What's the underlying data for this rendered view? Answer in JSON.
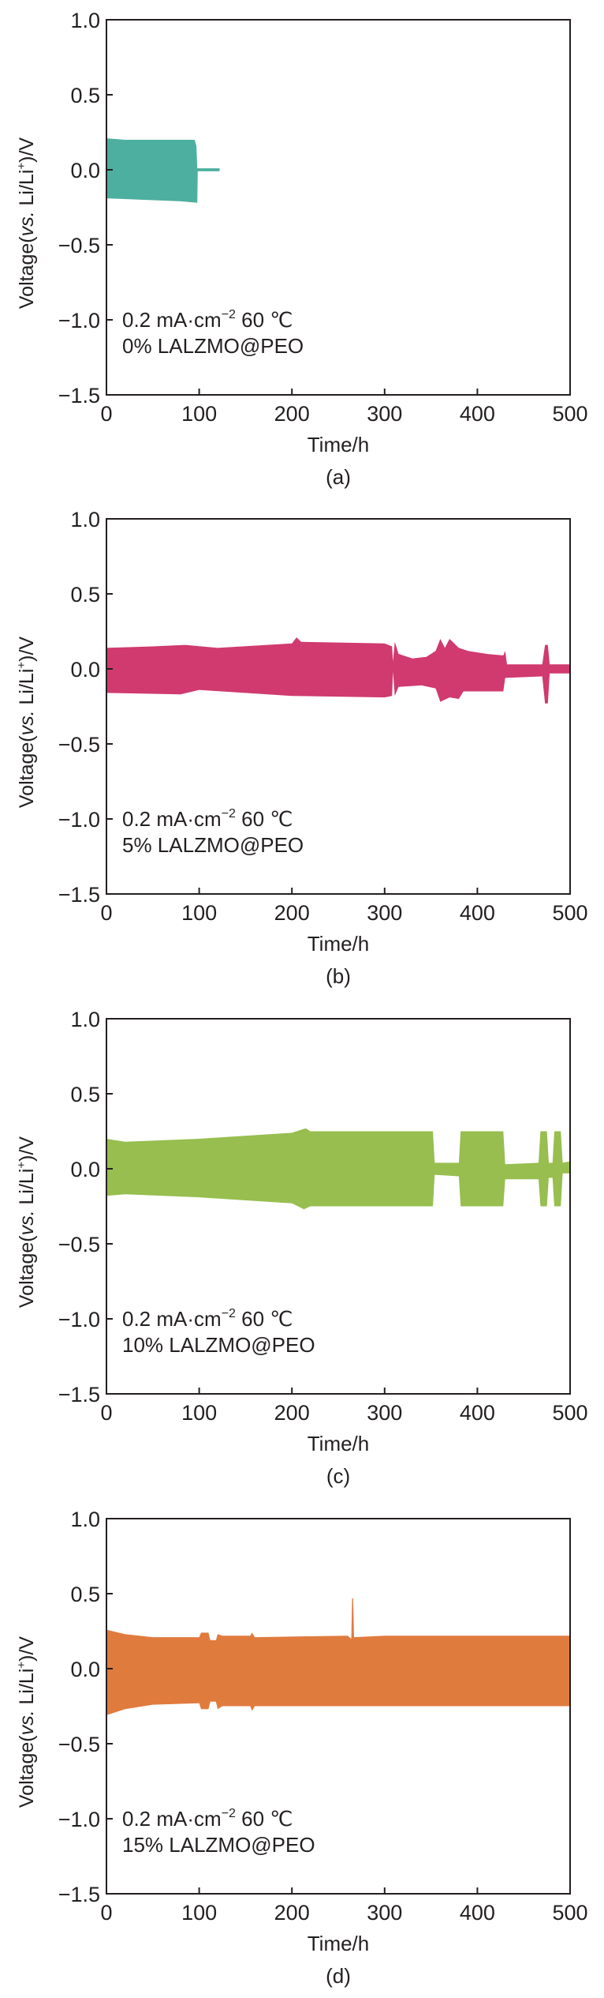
{
  "chart_data": [
    {
      "type": "area",
      "panel_label": "(a)",
      "xlabel": "Time/h",
      "ylabel": {
        "prefix": "Voltage(",
        "italic": "vs.",
        "middle": " Li/Li",
        "sup": "+",
        "suffix": ")/V"
      },
      "xlim": [
        0,
        500
      ],
      "ylim": [
        -1.5,
        1.0
      ],
      "xticks": [
        "0",
        "100",
        "200",
        "300",
        "400",
        "500"
      ],
      "yticks": [
        "1.0",
        "0.5",
        "0.0",
        "−0.5",
        "−1.0",
        "−1.5"
      ],
      "annotation": {
        "line1_prefix": "0.2 mA·cm",
        "line1_sup": "−2",
        "line1_suffix": " 60 ℃",
        "line2": "0% LALZMO@PEO"
      },
      "color": "#4daf9f",
      "upper_envelope": [
        [
          0,
          0.21
        ],
        [
          20,
          0.2
        ],
        [
          60,
          0.2
        ],
        [
          95,
          0.2
        ],
        [
          97,
          0.16
        ],
        [
          98,
          0.01
        ],
        [
          122,
          0.01
        ]
      ],
      "lower_envelope": [
        [
          0,
          -0.19
        ],
        [
          40,
          -0.2
        ],
        [
          80,
          -0.21
        ],
        [
          98,
          -0.22
        ],
        [
          98.5,
          -0.01
        ],
        [
          122,
          -0.01
        ]
      ]
    },
    {
      "type": "area",
      "panel_label": "(b)",
      "xlabel": "Time/h",
      "ylabel": {
        "prefix": "Voltage(",
        "italic": "vs.",
        "middle": " Li/Li",
        "sup": "+",
        "suffix": ")/V"
      },
      "xlim": [
        0,
        500
      ],
      "ylim": [
        -1.5,
        1.0
      ],
      "xticks": [
        "0",
        "100",
        "200",
        "300",
        "400",
        "500"
      ],
      "yticks": [
        "1.0",
        "0.5",
        "0.0",
        "−0.5",
        "−1.0",
        "−1.5"
      ],
      "annotation": {
        "line1_prefix": "0.2 mA·cm",
        "line1_sup": "−2",
        "line1_suffix": " 60 ℃",
        "line2": "5% LALZMO@PEO"
      },
      "color": "#d03a6e",
      "upper_envelope": [
        [
          0,
          0.14
        ],
        [
          50,
          0.15
        ],
        [
          85,
          0.16
        ],
        [
          120,
          0.14
        ],
        [
          200,
          0.17
        ],
        [
          205,
          0.21
        ],
        [
          210,
          0.18
        ],
        [
          300,
          0.17
        ],
        [
          308,
          0.15
        ],
        [
          309,
          0.05
        ],
        [
          311,
          0.18
        ],
        [
          315,
          0.1
        ],
        [
          330,
          0.07
        ],
        [
          345,
          0.08
        ],
        [
          355,
          0.12
        ],
        [
          360,
          0.2
        ],
        [
          365,
          0.14
        ],
        [
          370,
          0.2
        ],
        [
          380,
          0.14
        ],
        [
          390,
          0.12
        ],
        [
          410,
          0.1
        ],
        [
          428,
          0.09
        ],
        [
          430,
          0.12
        ],
        [
          432,
          0.03
        ],
        [
          470,
          0.03
        ],
        [
          473,
          0.16
        ],
        [
          476,
          0.16
        ],
        [
          478,
          0.03
        ],
        [
          500,
          0.03
        ]
      ],
      "lower_envelope": [
        [
          0,
          -0.16
        ],
        [
          80,
          -0.17
        ],
        [
          100,
          -0.14
        ],
        [
          200,
          -0.18
        ],
        [
          300,
          -0.19
        ],
        [
          308,
          -0.18
        ],
        [
          309,
          -0.02
        ],
        [
          311,
          -0.18
        ],
        [
          315,
          -0.12
        ],
        [
          340,
          -0.11
        ],
        [
          355,
          -0.13
        ],
        [
          360,
          -0.22
        ],
        [
          370,
          -0.19
        ],
        [
          380,
          -0.2
        ],
        [
          385,
          -0.15
        ],
        [
          428,
          -0.15
        ],
        [
          430,
          -0.06
        ],
        [
          470,
          -0.05
        ],
        [
          473,
          -0.23
        ],
        [
          476,
          -0.23
        ],
        [
          478,
          -0.03
        ],
        [
          500,
          -0.03
        ]
      ]
    },
    {
      "type": "area",
      "panel_label": "(c)",
      "xlabel": "Time/h",
      "ylabel": {
        "prefix": "Voltage(",
        "italic": "vs.",
        "middle": " Li/Li",
        "sup": "+",
        "suffix": ")/V"
      },
      "xlim": [
        0,
        500
      ],
      "ylim": [
        -1.5,
        1.0
      ],
      "xticks": [
        "0",
        "100",
        "200",
        "300",
        "400",
        "500"
      ],
      "yticks": [
        "1.0",
        "0.5",
        "0.0",
        "−0.5",
        "−1.0",
        "−1.5"
      ],
      "annotation": {
        "line1_prefix": "0.2 mA·cm",
        "line1_sup": "−2",
        "line1_suffix": " 60 ℃",
        "line2": "10% LALZMO@PEO"
      },
      "color": "#97be4f",
      "upper_envelope": [
        [
          0,
          0.2
        ],
        [
          20,
          0.18
        ],
        [
          100,
          0.2
        ],
        [
          200,
          0.24
        ],
        [
          215,
          0.27
        ],
        [
          220,
          0.25
        ],
        [
          300,
          0.25
        ],
        [
          352,
          0.25
        ],
        [
          354,
          0.04
        ],
        [
          380,
          0.04
        ],
        [
          382,
          0.25
        ],
        [
          428,
          0.25
        ],
        [
          430,
          0.03
        ],
        [
          466,
          0.04
        ],
        [
          468,
          0.25
        ],
        [
          475,
          0.25
        ],
        [
          477,
          0.04
        ],
        [
          481,
          0.04
        ],
        [
          483,
          0.25
        ],
        [
          490,
          0.25
        ],
        [
          492,
          0.04
        ],
        [
          500,
          0.05
        ]
      ],
      "lower_envelope": [
        [
          0,
          -0.18
        ],
        [
          20,
          -0.17
        ],
        [
          100,
          -0.19
        ],
        [
          200,
          -0.23
        ],
        [
          213,
          -0.27
        ],
        [
          220,
          -0.25
        ],
        [
          300,
          -0.25
        ],
        [
          352,
          -0.25
        ],
        [
          354,
          -0.04
        ],
        [
          380,
          -0.05
        ],
        [
          382,
          -0.25
        ],
        [
          428,
          -0.25
        ],
        [
          430,
          -0.07
        ],
        [
          466,
          -0.07
        ],
        [
          468,
          -0.25
        ],
        [
          475,
          -0.25
        ],
        [
          477,
          -0.06
        ],
        [
          481,
          -0.06
        ],
        [
          483,
          -0.25
        ],
        [
          490,
          -0.25
        ],
        [
          492,
          -0.03
        ],
        [
          500,
          -0.03
        ]
      ]
    },
    {
      "type": "area",
      "panel_label": "(d)",
      "xlabel": "Time/h",
      "ylabel": {
        "prefix": "Voltage(",
        "italic": "vs.",
        "middle": " Li/Li",
        "sup": "+",
        "suffix": ")/V"
      },
      "xlim": [
        0,
        500
      ],
      "ylim": [
        -1.5,
        1.0
      ],
      "xticks": [
        "0",
        "100",
        "200",
        "300",
        "400",
        "500"
      ],
      "yticks": [
        "1.0",
        "0.5",
        "0.0",
        "−0.5",
        "−1.0",
        "−1.5"
      ],
      "annotation": {
        "line1_prefix": "0.2 mA·cm",
        "line1_sup": "−2",
        "line1_suffix": " 60 ℃",
        "line2": "15% LALZMO@PEO"
      },
      "color": "#e07b3e",
      "upper_envelope": [
        [
          0,
          0.26
        ],
        [
          20,
          0.23
        ],
        [
          50,
          0.21
        ],
        [
          100,
          0.21
        ],
        [
          102,
          0.24
        ],
        [
          110,
          0.24
        ],
        [
          112,
          0.19
        ],
        [
          118,
          0.19
        ],
        [
          120,
          0.23
        ],
        [
          125,
          0.22
        ],
        [
          155,
          0.22
        ],
        [
          157,
          0.24
        ],
        [
          160,
          0.21
        ],
        [
          260,
          0.22
        ],
        [
          264,
          0.2
        ],
        [
          265,
          0.47
        ],
        [
          266,
          0.47
        ],
        [
          267,
          0.21
        ],
        [
          300,
          0.22
        ],
        [
          400,
          0.22
        ],
        [
          500,
          0.22
        ]
      ],
      "lower_envelope": [
        [
          0,
          -0.31
        ],
        [
          20,
          -0.27
        ],
        [
          50,
          -0.24
        ],
        [
          100,
          -0.23
        ],
        [
          102,
          -0.27
        ],
        [
          110,
          -0.27
        ],
        [
          112,
          -0.22
        ],
        [
          118,
          -0.22
        ],
        [
          120,
          -0.27
        ],
        [
          125,
          -0.25
        ],
        [
          155,
          -0.25
        ],
        [
          157,
          -0.28
        ],
        [
          160,
          -0.25
        ],
        [
          300,
          -0.25
        ],
        [
          400,
          -0.25
        ],
        [
          500,
          -0.25
        ]
      ]
    }
  ]
}
